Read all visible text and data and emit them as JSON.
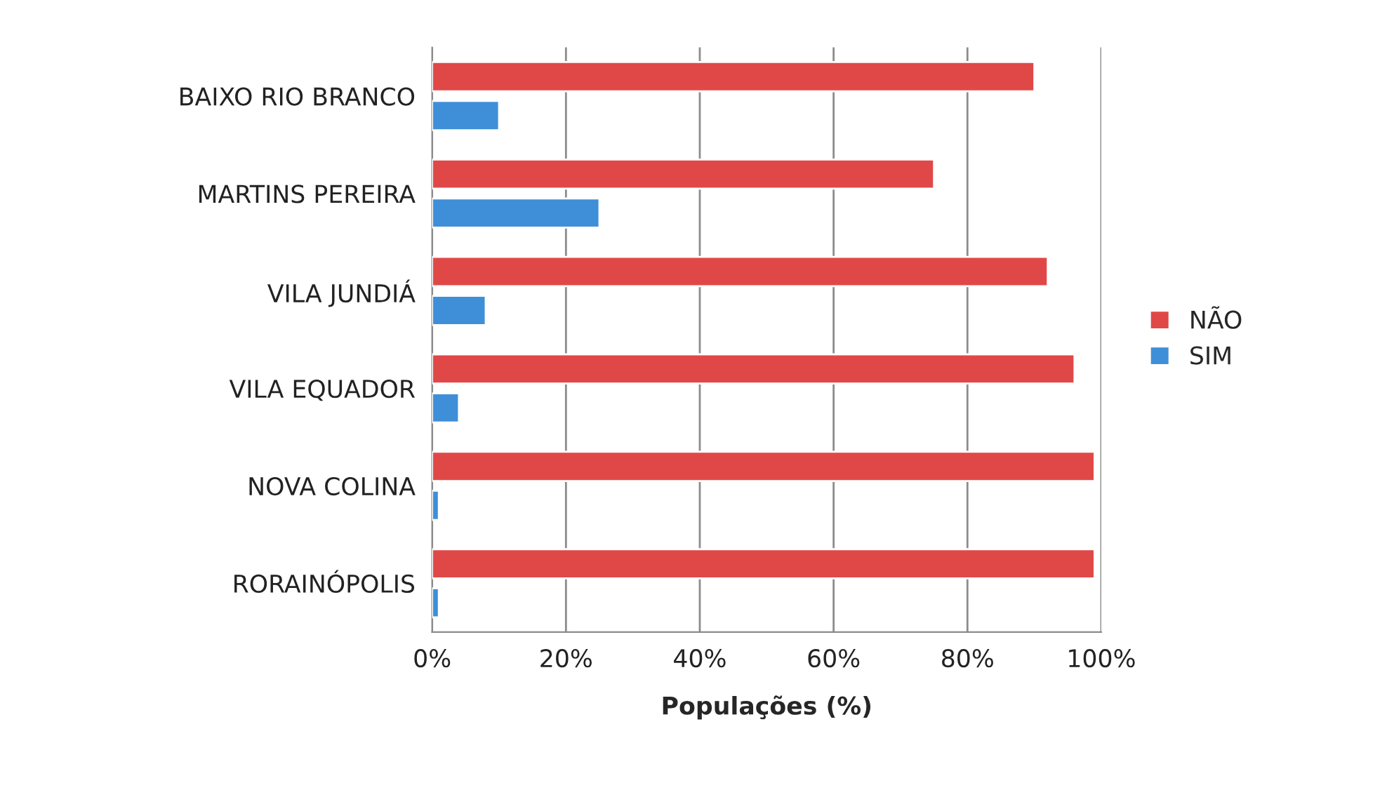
{
  "chart_data": {
    "type": "bar",
    "orientation": "horizontal",
    "categories": [
      "BAIXO RIO BRANCO",
      "MARTINS PEREIRA",
      "VILA JUNDIÁ",
      "VILA EQUADOR",
      "NOVA COLINA",
      "RORAINÓPOLIS"
    ],
    "series": [
      {
        "name": "NÃO",
        "color": "#e04848",
        "values": [
          90,
          75,
          92,
          96,
          99,
          99
        ]
      },
      {
        "name": "SIM",
        "color": "#3f8fd8",
        "values": [
          10,
          25,
          8,
          4,
          1,
          1
        ]
      }
    ],
    "xlabel": "Populações (%)",
    "xlim": [
      0,
      100
    ],
    "xticks": [
      {
        "value": 0,
        "label": "0%"
      },
      {
        "value": 20,
        "label": "20%"
      },
      {
        "value": 40,
        "label": "40%"
      },
      {
        "value": 60,
        "label": "60%"
      },
      {
        "value": 80,
        "label": "80%"
      },
      {
        "value": 100,
        "label": "100%"
      }
    ],
    "grid": "x",
    "legend": "right"
  }
}
